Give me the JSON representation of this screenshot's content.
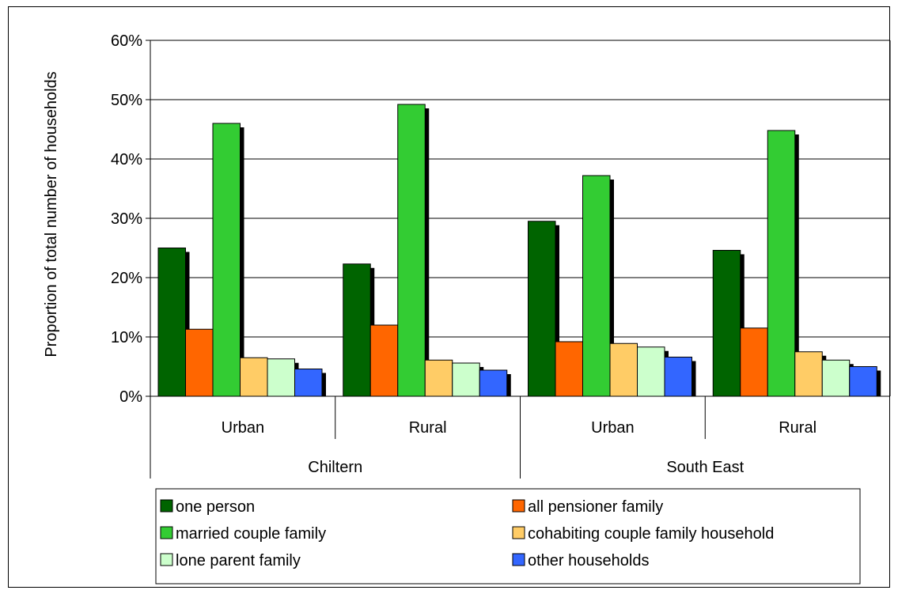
{
  "chart_data": {
    "type": "bar",
    "title": "",
    "ylabel": "Proportion of total number of households",
    "xlabel": "",
    "ylim": [
      0,
      60
    ],
    "ytick_values": [
      0,
      10,
      20,
      30,
      40,
      50,
      60
    ],
    "ytick_labels": [
      "0%",
      "10%",
      "20%",
      "30%",
      "40%",
      "50%",
      "60%"
    ],
    "grid": true,
    "legend_position": "bottom",
    "groups": [
      {
        "label": "Chiltern",
        "categories": [
          "Urban",
          "Rural"
        ]
      },
      {
        "label": "South East",
        "categories": [
          "Urban",
          "Rural"
        ]
      }
    ],
    "categories": [
      "Urban",
      "Rural",
      "Urban",
      "Rural"
    ],
    "series": [
      {
        "name": "one person",
        "color": "#006400",
        "values": [
          25.0,
          22.3,
          29.5,
          24.6
        ]
      },
      {
        "name": "all pensioner family",
        "color": "#ff6600",
        "values": [
          11.3,
          12.0,
          9.2,
          11.5
        ]
      },
      {
        "name": "married couple family",
        "color": "#33cc33",
        "values": [
          46.0,
          49.2,
          37.2,
          44.8
        ]
      },
      {
        "name": "cohabiting couple family household",
        "color": "#ffcc66",
        "values": [
          6.5,
          6.1,
          8.9,
          7.5
        ]
      },
      {
        "name": "lone parent family",
        "color": "#ccffcc",
        "values": [
          6.3,
          5.6,
          8.3,
          6.1
        ]
      },
      {
        "name": "other households",
        "color": "#3366ff",
        "values": [
          4.6,
          4.4,
          6.6,
          5.0
        ]
      }
    ]
  }
}
